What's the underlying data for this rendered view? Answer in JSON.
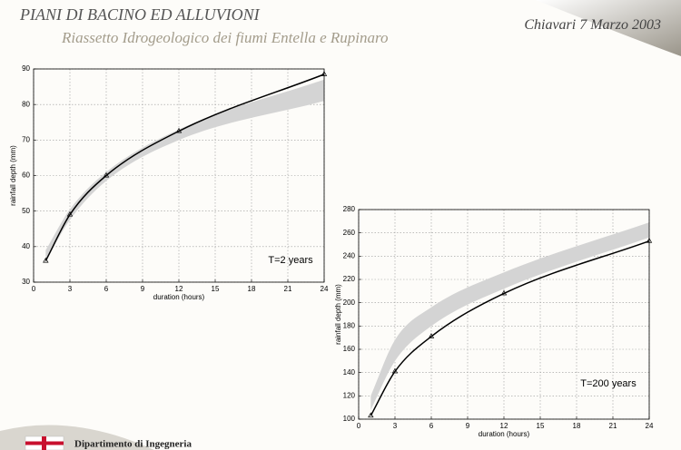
{
  "header": {
    "title": "PIANI DI BACINO ED ALLUVIONI",
    "subtitle": "Riassetto Idrogeologico dei fiumi Entella e Rupinaro",
    "date": "Chiavari 7 Marzo 2003"
  },
  "footer": {
    "text": "Dipartimento di Ingegneria"
  },
  "chart_data": [
    {
      "type": "line",
      "xlabel": "duration (hours)",
      "ylabel": "rainfall depth (mm)",
      "annotation": "T=2 years",
      "x": [
        1,
        3,
        6,
        12,
        24
      ],
      "xlim": [
        0,
        24
      ],
      "xticks": [
        0,
        3,
        6,
        9,
        12,
        15,
        18,
        21,
        24
      ],
      "ylim": [
        30,
        90
      ],
      "yticks": [
        30,
        40,
        50,
        60,
        70,
        80,
        90
      ],
      "grid": true,
      "series": [
        {
          "type": "band",
          "color": "#d4d4d4",
          "lower": [
            36,
            47.5,
            58.5,
            70,
            81
          ],
          "upper": [
            39,
            50.5,
            61,
            73,
            87
          ]
        },
        {
          "type": "line",
          "color": "#000000",
          "marker": "triangle",
          "values": [
            36,
            49,
            60,
            72.5,
            88.5
          ]
        }
      ]
    },
    {
      "type": "line",
      "xlabel": "duration (hours)",
      "ylabel": "rainfall depth (mm)",
      "annotation": "T=200 years",
      "x": [
        1,
        3,
        6,
        12,
        24
      ],
      "xlim": [
        0,
        24
      ],
      "xticks": [
        0,
        3,
        6,
        9,
        12,
        15,
        18,
        21,
        24
      ],
      "ylim": [
        100,
        280
      ],
      "yticks": [
        100,
        120,
        140,
        160,
        180,
        200,
        220,
        240,
        260,
        280
      ],
      "grid": true,
      "series": [
        {
          "type": "band",
          "color": "#d4d4d4",
          "lower": [
            108,
            150,
            180,
            212,
            256
          ],
          "upper": [
            120,
            168,
            196,
            226,
            269
          ]
        },
        {
          "type": "line",
          "color": "#000000",
          "marker": "triangle",
          "values": [
            103,
            141,
            171,
            208,
            253
          ]
        }
      ]
    }
  ]
}
